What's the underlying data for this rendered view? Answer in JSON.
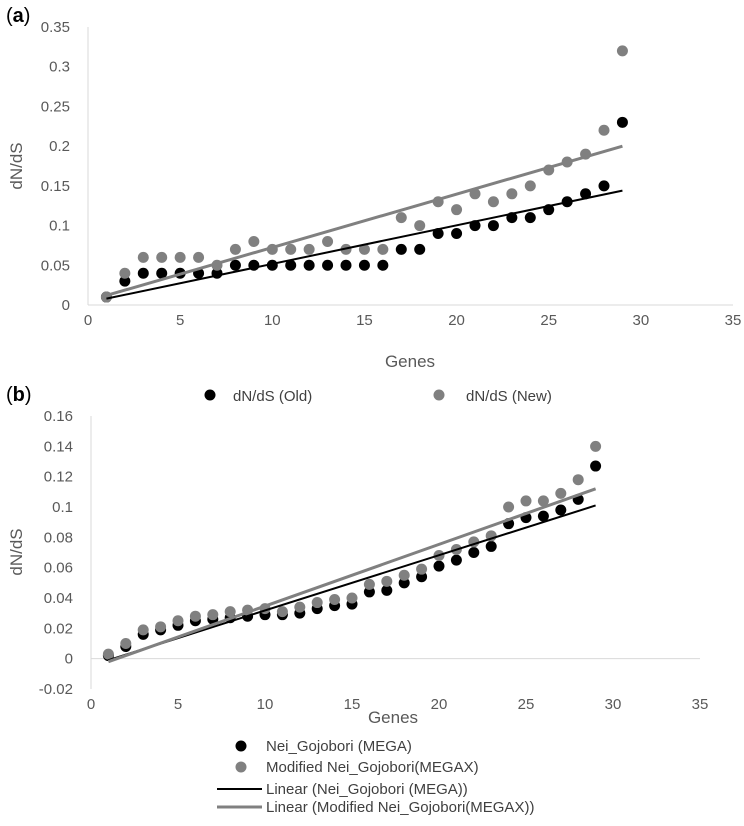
{
  "chart_data": [
    {
      "type": "scatter",
      "panel_label": "(a)",
      "panel_letter": "a",
      "xlabel": "Genes",
      "ylabel": "dN/dS",
      "xlim": [
        0,
        35
      ],
      "ylim": [
        0,
        0.35
      ],
      "x_ticks": [
        "0",
        "5",
        "10",
        "15",
        "20",
        "25",
        "30",
        "35"
      ],
      "y_ticks": [
        "0",
        "0.05",
        "0.1",
        "0.15",
        "0.2",
        "0.25",
        "0.3",
        "0.35"
      ],
      "grid": false,
      "legend_position": "bottom",
      "x": [
        1,
        2,
        3,
        4,
        5,
        6,
        7,
        8,
        9,
        10,
        11,
        12,
        13,
        14,
        15,
        16,
        17,
        18,
        19,
        20,
        21,
        22,
        23,
        24,
        25,
        26,
        27,
        28,
        29
      ],
      "series": [
        {
          "name": "dN/dS (Old)",
          "color": "#000000",
          "values": [
            0.01,
            0.03,
            0.04,
            0.04,
            0.04,
            0.04,
            0.04,
            0.05,
            0.05,
            0.05,
            0.05,
            0.05,
            0.05,
            0.05,
            0.05,
            0.05,
            0.07,
            0.07,
            0.09,
            0.09,
            0.1,
            0.1,
            0.11,
            0.11,
            0.12,
            0.13,
            0.14,
            0.15,
            0.23
          ]
        },
        {
          "name": "dN/dS (New)",
          "color": "#808080",
          "values": [
            0.01,
            0.04,
            0.06,
            0.06,
            0.06,
            0.06,
            0.05,
            0.07,
            0.08,
            0.07,
            0.07,
            0.07,
            0.08,
            0.07,
            0.07,
            0.07,
            0.11,
            0.1,
            0.13,
            0.12,
            0.14,
            0.13,
            0.14,
            0.15,
            0.17,
            0.18,
            0.19,
            0.22,
            0.32
          ]
        }
      ],
      "trendlines": [
        {
          "color": "#000000",
          "x": [
            1,
            29
          ],
          "y": [
            0.008,
            0.144
          ]
        },
        {
          "color": "#808080",
          "x": [
            1,
            29
          ],
          "y": [
            0.012,
            0.2
          ]
        }
      ]
    },
    {
      "type": "scatter",
      "panel_label": "(b)",
      "panel_letter": "b",
      "xlabel": "Genes",
      "ylabel": "dN/dS",
      "xlim": [
        0,
        35
      ],
      "ylim": [
        -0.02,
        0.16
      ],
      "x_ticks": [
        "0",
        "5",
        "10",
        "15",
        "20",
        "25",
        "30",
        "35"
      ],
      "y_ticks": [
        "-0.02",
        "0",
        "0.02",
        "0.04",
        "0.06",
        "0.08",
        "0.1",
        "0.12",
        "0.14",
        "0.16"
      ],
      "grid": false,
      "legend_position": "bottom",
      "x": [
        1,
        2,
        3,
        4,
        5,
        6,
        7,
        8,
        9,
        10,
        11,
        12,
        13,
        14,
        15,
        16,
        17,
        18,
        19,
        20,
        21,
        22,
        23,
        24,
        25,
        26,
        27,
        28,
        29
      ],
      "series": [
        {
          "name": "Nei_Gojobori (MEGA)",
          "color": "#000000",
          "values": [
            0.002,
            0.008,
            0.016,
            0.019,
            0.022,
            0.025,
            0.026,
            0.027,
            0.028,
            0.029,
            0.029,
            0.03,
            0.033,
            0.035,
            0.036,
            0.044,
            0.045,
            0.05,
            0.054,
            0.061,
            0.065,
            0.07,
            0.074,
            0.089,
            0.093,
            0.094,
            0.098,
            0.105,
            0.127
          ]
        },
        {
          "name": "Modified Nei_Gojobori(MEGAX)",
          "color": "#808080",
          "values": [
            0.003,
            0.01,
            0.019,
            0.021,
            0.025,
            0.028,
            0.029,
            0.031,
            0.032,
            0.033,
            0.031,
            0.034,
            0.037,
            0.039,
            0.04,
            0.049,
            0.051,
            0.055,
            0.059,
            0.068,
            0.072,
            0.077,
            0.081,
            0.1,
            0.104,
            0.104,
            0.109,
            0.118,
            0.14
          ]
        }
      ],
      "trendlines": [
        {
          "name": "Linear (Nei_Gojobori (MEGA))",
          "color": "#000000",
          "x": [
            1,
            29
          ],
          "y": [
            -0.001,
            0.101
          ]
        },
        {
          "name": "Linear (Modified Nei_Gojobori(MEGAX))",
          "color": "#808080",
          "x": [
            1,
            29
          ],
          "y": [
            -0.002,
            0.112
          ]
        }
      ]
    }
  ]
}
